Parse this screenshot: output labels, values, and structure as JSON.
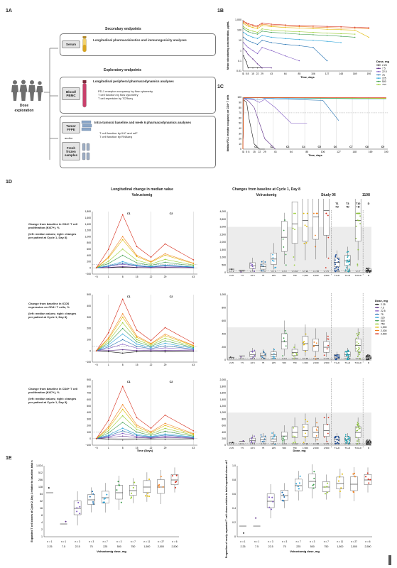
{
  "panels": {
    "a": "1A",
    "b": "1B",
    "c": "1C",
    "d": "1D",
    "e": "1E"
  },
  "fig1a": {
    "left_label": "Dose exploration",
    "secondary_title": "Secondary endpoints",
    "exploratory_title": "Exploratory endpoints",
    "serum": {
      "label": "Serum",
      "text": "Longitudinal pharmacokinetics and immunogenicity analyses"
    },
    "blood": {
      "label": "Blood/ PBMC",
      "title": "Longitudinal peripheral pharmacodynamics analyses",
      "bullets": [
        "PD-1 receptor occupancy by flow cytometry",
        "T cell function by flow cytometry",
        "T cell repertoire by TCRseq"
      ]
    },
    "tumor": {
      "label": "Tumor FFPE",
      "and_or": "and/or",
      "label2": "Fresh frozen samples",
      "title": "Intra-tumoral baseline and week 6 pharmacodynamics analyses",
      "bullets": [
        "T cell function by IHC and mIF",
        "T cell function by RNAseq"
      ]
    }
  },
  "dose_legend": {
    "title": "Dose, mg",
    "entries": [
      "2.25",
      "7.5",
      "22.5",
      "75",
      "225",
      "500",
      "750",
      "1,500",
      "2,000",
      "2,500"
    ]
  },
  "colors": [
    "#1a1a1a",
    "#5b2a86",
    "#7e57c2",
    "#1f6fb0",
    "#2ba3d8",
    "#3f9e4d",
    "#9acd32",
    "#e0b800",
    "#f07f1e",
    "#d62c1a"
  ],
  "fig1b": {
    "ylabel": "Mean volrustomig concentration, μg/mL",
    "xlabel": "Time, days",
    "y_ticks": [
      "1,000",
      "100",
      "10",
      "1",
      "0.1",
      "0.01"
    ],
    "x_ticks": [
      "0",
      "1",
      "5",
      "8",
      "15",
      "22",
      "29",
      "43",
      "64",
      "85",
      "106",
      "127",
      "148",
      "169",
      "190"
    ]
  },
  "fig1c": {
    "ylabel": "Median PD-1 receptor occupancy on CD4+ T cells",
    "xlabel": "Time, days",
    "y_ticks": [
      "100",
      "90",
      "80",
      "70",
      "60",
      "50",
      "40",
      "30",
      "20",
      "10",
      "0"
    ],
    "x_ticks": [
      "0",
      "1",
      "5",
      "8",
      "15",
      "22",
      "29",
      "43",
      "64",
      "85",
      "106",
      "127",
      "148",
      "169",
      "190"
    ],
    "cycles": [
      "C1",
      "C2",
      "C3",
      "C4",
      "C5",
      "C6",
      "C7",
      "C8",
      "C9"
    ]
  },
  "fig1d": {
    "left_title": "Longitudinal change in median value",
    "left_sub": "Volrustomig",
    "right_title": "Changes from baseline at Cycle 1, Day 8",
    "right_sub": "Volrustomig",
    "study06": "Study 06",
    "study1108": "1108",
    "grp_top": [
      "T1\n+D",
      "T3\n+D",
      "T10\n+D",
      "D"
    ],
    "cycle_labels": [
      "C1",
      "C2"
    ],
    "x_ticks_left": [
      "−5",
      "1",
      "8",
      "15",
      "22",
      "29",
      "43"
    ],
    "xlabel_left": "Time (Days)",
    "x_ticks_right": [
      "2.25",
      "7.5",
      "22.5",
      "75",
      "225",
      "500",
      "750",
      "1,500",
      "2,000",
      "2,500",
      "T1+D",
      "T3+D",
      "T10+D",
      "D"
    ],
    "xlabel_right": "Dose, mg",
    "rows": [
      {
        "label": "Change from baseline in CD4+ T cell proliferation (Ki67+), %",
        "note": "(left: median values; right: changes per patient at Cycle 1, Day 8)",
        "y_left": [
          "1,800",
          "1,600",
          "1,400",
          "1,200",
          "1,000",
          "800",
          "600",
          "400",
          "200",
          "0",
          "−200"
        ],
        "y_right": [
          "4,000",
          "3,500",
          "3,000",
          "2,500",
          "2,000",
          "1,500",
          "1,000",
          "500",
          "0"
        ],
        "n": [
          "n = 1",
          "n = 1",
          "n = 3",
          "n = 3",
          "n = 4",
          "n = 4",
          "n = 10",
          "n = 24",
          "n = 25",
          "n = 5",
          "n = 84",
          "n = 28",
          "n = 7",
          "n = 210"
        ]
      },
      {
        "label": "Change from baseline in ICOS expression on CD4+ T cells, %",
        "note": "(left: median values; right: changes per patient at Cycle 1, Day 8)",
        "y_left": [
          "500",
          "400",
          "300",
          "200",
          "100",
          "0",
          "−100"
        ],
        "y_right": [
          "1,000",
          "800",
          "600",
          "400",
          "200",
          "0"
        ],
        "n": [
          "n = 1",
          "n = 1",
          "n = 3",
          "n = 3",
          "n = 4",
          "n = 3",
          "n = 10",
          "n = 24",
          "n = 25",
          "n = 5",
          "n = 85",
          "n = 28",
          "n = 7",
          "n = 61"
        ]
      },
      {
        "label": "Change from baseline in CD8+ T cell proliferation (Ki67+), %",
        "note": "(left: median values; right: changes per patient at Cycle 1, Day 8)",
        "y_left": [
          "900",
          "800",
          "700",
          "600",
          "500",
          "400",
          "300",
          "200",
          "100",
          "0",
          "−100"
        ],
        "y_right": [
          "2,000",
          "1,800",
          "1,600",
          "1,400",
          "1,200",
          "1,000",
          "800",
          "600",
          "400",
          "200",
          "0"
        ],
        "n": [
          "n = 1",
          "n = 1",
          "n = 3",
          "n = 3",
          "n = 4",
          "n = 4",
          "n = 10",
          "n = 24",
          "n = 25",
          "n = 5",
          "n = 82",
          "n = 28",
          "n = 7",
          "n = 40"
        ]
      }
    ]
  },
  "fig1e": {
    "left_ylabel": "Expanded T cell clones at Cycle 2, Day 1 relative to baseline, total n",
    "right_ylabel": "Proportion of newly expanded T cell clones relative to total expanded clones at Cycle 2, Day 1",
    "xlabel": "Volrustomig dose, mg",
    "y_left": [
      "1,024",
      "512",
      "256",
      "128",
      "64",
      "32",
      "16",
      "8",
      "4",
      "2",
      "1"
    ],
    "y_right": [
      "1.0",
      "0.8",
      "0.6",
      "0.4",
      "0.2",
      "0"
    ],
    "x_ticks": [
      "2.25",
      "7.5",
      "22.5",
      "75",
      "225",
      "500",
      "750",
      "1,500",
      "2,000",
      "2,500"
    ],
    "n": [
      "n = 1",
      "n = 1",
      "n = 3",
      "n = 3",
      "n = 7",
      "n = 3",
      "n = 7",
      "n = 11",
      "n = 27",
      "n = 6"
    ]
  },
  "chart_data": [
    {
      "type": "line",
      "title": "",
      "xlabel": "Time, days",
      "ylabel": "Mean volrustomig concentration, μg/mL",
      "yscale": "log",
      "ylim": [
        0.01,
        1000
      ],
      "series": [
        {
          "name": "2.25",
          "x": [
            1,
            5,
            8,
            15,
            22,
            29
          ],
          "y": [
            0.3,
            0.08,
            0.02,
            0.02,
            0.02,
            0.02
          ]
        },
        {
          "name": "7.5",
          "x": [
            1,
            5,
            8,
            15,
            22,
            29,
            43
          ],
          "y": [
            1.5,
            0.8,
            0.4,
            0.15,
            0.05,
            0.02,
            0.02
          ]
        },
        {
          "name": "22.5",
          "x": [
            1,
            5,
            8,
            15,
            22,
            29,
            43,
            64,
            85
          ],
          "y": [
            6,
            3,
            2,
            1,
            0.5,
            2,
            1,
            0.3,
            0.1
          ]
        },
        {
          "name": "75",
          "x": [
            1,
            5,
            8,
            15,
            22,
            29,
            43,
            64,
            85,
            106,
            127
          ],
          "y": [
            20,
            12,
            9,
            6,
            4,
            10,
            6,
            4,
            3,
            2,
            0.1
          ]
        },
        {
          "name": "225",
          "x": [
            1,
            5,
            8,
            15,
            22,
            29,
            43,
            64,
            85,
            106,
            127,
            148
          ],
          "y": [
            60,
            40,
            30,
            20,
            15,
            30,
            20,
            15,
            12,
            10,
            8,
            6
          ]
        },
        {
          "name": "500",
          "x": [
            1,
            5,
            8,
            15,
            22,
            29,
            43,
            64,
            85,
            106,
            127,
            148,
            169
          ],
          "y": [
            150,
            90,
            70,
            50,
            40,
            80,
            60,
            50,
            40,
            35,
            30,
            25,
            20
          ]
        },
        {
          "name": "750",
          "x": [
            1,
            5,
            8,
            15,
            22,
            29,
            43,
            64,
            85,
            106,
            127,
            148,
            169
          ],
          "y": [
            220,
            140,
            110,
            80,
            60,
            130,
            100,
            80,
            70,
            60,
            50,
            45,
            40
          ]
        },
        {
          "name": "1,500",
          "x": [
            1,
            5,
            8,
            15,
            22,
            29,
            43,
            64,
            85,
            106,
            127,
            148,
            169,
            190
          ],
          "y": [
            450,
            300,
            240,
            180,
            140,
            280,
            220,
            180,
            160,
            140,
            120,
            110,
            100,
            20
          ]
        },
        {
          "name": "2,000",
          "x": [
            1,
            5,
            8,
            15,
            22,
            29,
            43,
            64,
            85,
            106,
            127,
            148,
            169,
            190
          ],
          "y": [
            600,
            420,
            330,
            250,
            200,
            380,
            300,
            250,
            220,
            200,
            180,
            160,
            150,
            140
          ]
        },
        {
          "name": "2,500",
          "x": [
            1,
            5,
            8,
            15,
            22,
            29,
            43,
            64,
            85,
            106,
            127,
            148,
            169,
            190
          ],
          "y": [
            750,
            520,
            420,
            320,
            260,
            480,
            380,
            320,
            280,
            250,
            230,
            210,
            190,
            170
          ]
        }
      ]
    },
    {
      "type": "line",
      "title": "",
      "xlabel": "Time, days",
      "ylabel": "Median PD-1 receptor occupancy on CD4+ T cells",
      "ylim": [
        0,
        100
      ],
      "series": [
        {
          "name": "2.25",
          "x": [
            0,
            1,
            5,
            8,
            15,
            22,
            29
          ],
          "y": [
            0,
            95,
            90,
            60,
            10,
            0,
            0
          ]
        },
        {
          "name": "7.5",
          "x": [
            0,
            1,
            5,
            8,
            15,
            22,
            29,
            43
          ],
          "y": [
            0,
            97,
            95,
            92,
            80,
            50,
            20,
            0
          ]
        },
        {
          "name": "22.5",
          "x": [
            0,
            1,
            5,
            8,
            15,
            22,
            29,
            43,
            64,
            85
          ],
          "y": [
            0,
            98,
            97,
            96,
            95,
            90,
            96,
            80,
            50,
            50
          ]
        },
        {
          "name": "75",
          "x": [
            0,
            1,
            5,
            8,
            15,
            22,
            29,
            43,
            64,
            85,
            106,
            127
          ],
          "y": [
            0,
            99,
            98,
            98,
            97,
            96,
            98,
            97,
            96,
            95,
            94,
            55
          ]
        },
        {
          "name": "225",
          "x": [
            0,
            1,
            8,
            29,
            64,
            106,
            148,
            190
          ],
          "y": [
            0,
            99,
            99,
            99,
            98,
            98,
            97,
            97
          ]
        },
        {
          "name": "500",
          "x": [
            0,
            1,
            8,
            29,
            64,
            106,
            148,
            190
          ],
          "y": [
            0,
            99,
            99,
            99,
            99,
            98,
            98,
            98
          ]
        },
        {
          "name": "750",
          "x": [
            0,
            1,
            8,
            29,
            64,
            106,
            148,
            190
          ],
          "y": [
            0,
            99,
            99,
            99,
            99,
            99,
            98,
            98
          ]
        },
        {
          "name": "1,500",
          "x": [
            0,
            1,
            8,
            29,
            64,
            106,
            148,
            190
          ],
          "y": [
            0,
            99,
            99,
            99,
            99,
            99,
            99,
            98
          ]
        },
        {
          "name": "2,000",
          "x": [
            0,
            1,
            8,
            29,
            64,
            106,
            148,
            190
          ],
          "y": [
            0,
            99,
            99,
            99,
            99,
            99,
            99,
            99
          ]
        },
        {
          "name": "2,500",
          "x": [
            0,
            1,
            8,
            29,
            64,
            106,
            148,
            190
          ],
          "y": [
            0,
            99,
            99,
            99,
            99,
            99,
            99,
            99
          ]
        }
      ]
    }
  ]
}
